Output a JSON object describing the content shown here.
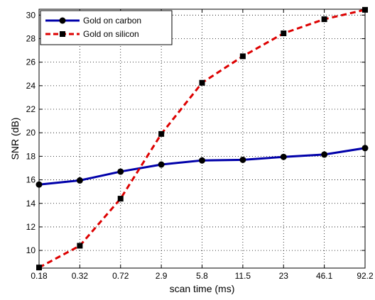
{
  "chart_data": {
    "type": "line",
    "categories": [
      "0.18",
      "0.32",
      "0.72",
      "2.9",
      "5.8",
      "11.5",
      "23",
      "46.1",
      "92.2"
    ],
    "xlabel": "scan time (ms)",
    "ylabel": "SNR (dB)",
    "ylim": [
      8.5,
      30.5
    ],
    "yticks": [
      "10",
      "12",
      "14",
      "16",
      "18",
      "20",
      "22",
      "24",
      "26",
      "28",
      "30"
    ],
    "grid": true,
    "legend_position": "top-left",
    "series": [
      {
        "name": "Gold on carbon",
        "values": [
          15.6,
          15.95,
          16.7,
          17.3,
          17.65,
          17.7,
          17.95,
          18.15,
          18.7
        ],
        "color": "#0000aa",
        "line_style": "solid",
        "marker": "circle"
      },
      {
        "name": "Gold on silicon",
        "values": [
          8.55,
          10.4,
          14.4,
          19.9,
          24.25,
          26.5,
          28.45,
          29.65,
          30.45
        ],
        "color": "#dd0000",
        "line_style": "dashed",
        "marker": "square"
      }
    ]
  }
}
